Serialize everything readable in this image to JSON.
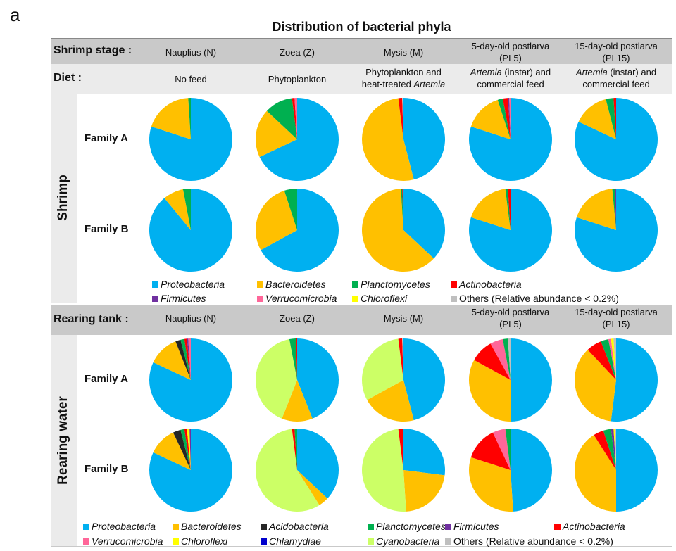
{
  "panel_letter": "a",
  "chart_data": {
    "type": "pie",
    "title": "Distribution of bacterial phyla",
    "slice_order": "clockwise from 12 o'clock",
    "colors": {
      "Proteobacteria": "#00b0f0",
      "Bacteroidetes": "#ffc000",
      "Acidobacteria": "#262626",
      "Planctomycetes": "#00b050",
      "Firmicutes": "#7030a0",
      "Actinobacteria": "#ff0000",
      "Verrucomicrobia": "#ff6699",
      "Chloroflexi": "#ffff00",
      "Chlamydiae": "#0000cc",
      "Cyanobacteria": "#ccff66",
      "Others": "#bfbfbf"
    },
    "sections": [
      {
        "side_label": "Shrimp",
        "header_label": "Shrimp stage :",
        "stages": [
          {
            "line1": "Nauplius (N)",
            "line2": ""
          },
          {
            "line1": "Zoea (Z)",
            "line2": ""
          },
          {
            "line1": "Mysis (M)",
            "line2": ""
          },
          {
            "line1": "5-day-old postlarva",
            "line2": "(PL5)"
          },
          {
            "line1": "15-day-old postlarva",
            "line2": "(PL15)"
          }
        ],
        "diet_label": "Diet :",
        "diets": [
          {
            "line1": "No feed",
            "line2": ""
          },
          {
            "line1": "Phytoplankton",
            "line2": ""
          },
          {
            "line1": "Phytoplankton and",
            "line2": "heat-treated ",
            "line2_italic": "Artemia"
          },
          {
            "line1_italic": "Artemia",
            "line1": " (instar) and",
            "line2": "commercial feed"
          },
          {
            "line1_italic": "Artemia",
            "line1": " (instar) and",
            "line2": "commercial feed"
          }
        ],
        "families": [
          {
            "label": "Family A",
            "pies": [
              [
                [
                  "Proteobacteria",
                  80
                ],
                [
                  "Bacteroidetes",
                  19
                ],
                [
                  "Planctomycetes",
                  1
                ]
              ],
              [
                [
                  "Proteobacteria",
                  68
                ],
                [
                  "Bacteroidetes",
                  19
                ],
                [
                  "Planctomycetes",
                  11
                ],
                [
                  "Actinobacteria",
                  1
                ],
                [
                  "Verrucomicrobia",
                  1
                ]
              ],
              [
                [
                  "Proteobacteria",
                  46
                ],
                [
                  "Bacteroidetes",
                  52
                ],
                [
                  "Actinobacteria",
                  1.5
                ],
                [
                  "Others",
                  0.5
                ]
              ],
              [
                [
                  "Proteobacteria",
                  80
                ],
                [
                  "Bacteroidetes",
                  15
                ],
                [
                  "Planctomycetes",
                  2
                ],
                [
                  "Actinobacteria",
                  2
                ],
                [
                  "Firmicutes",
                  0.5
                ],
                [
                  "Verrucomicrobia",
                  0.5
                ]
              ],
              [
                [
                  "Proteobacteria",
                  82
                ],
                [
                  "Bacteroidetes",
                  14
                ],
                [
                  "Planctomycetes",
                  3
                ],
                [
                  "Actinobacteria",
                  1
                ]
              ]
            ]
          },
          {
            "label": "Family B",
            "pies": [
              [
                [
                  "Proteobacteria",
                  89
                ],
                [
                  "Bacteroidetes",
                  8
                ],
                [
                  "Planctomycetes",
                  3
                ]
              ],
              [
                [
                  "Proteobacteria",
                  67
                ],
                [
                  "Bacteroidetes",
                  28
                ],
                [
                  "Planctomycetes",
                  5
                ]
              ],
              [
                [
                  "Proteobacteria",
                  37
                ],
                [
                  "Bacteroidetes",
                  62
                ],
                [
                  "Planctomycetes",
                  0.5
                ],
                [
                  "Actinobacteria",
                  0.5
                ]
              ],
              [
                [
                  "Proteobacteria",
                  80
                ],
                [
                  "Bacteroidetes",
                  18
                ],
                [
                  "Planctomycetes",
                  1
                ],
                [
                  "Actinobacteria",
                  1
                ]
              ],
              [
                [
                  "Proteobacteria",
                  80
                ],
                [
                  "Bacteroidetes",
                  18.5
                ],
                [
                  "Planctomycetes",
                  1
                ],
                [
                  "Firmicutes",
                  0.5
                ]
              ]
            ]
          }
        ],
        "legend": [
          "Proteobacteria",
          "Bacteroidetes",
          "Planctomycetes",
          "Actinobacteria",
          "Firmicutes",
          "Verrucomicrobia",
          "Chloroflexi",
          "Others"
        ],
        "others_label": "Others (Relative abundance < 0.2%)"
      },
      {
        "side_label": "Rearing water",
        "header_label": "Rearing tank :",
        "stages": [
          {
            "line1": "Nauplius (N)",
            "line2": ""
          },
          {
            "line1": "Zoea (Z)",
            "line2": ""
          },
          {
            "line1": "Mysis (M)",
            "line2": ""
          },
          {
            "line1": "5-day-old postlarva",
            "line2": "(PL5)"
          },
          {
            "line1": "15-day-old postlarva",
            "line2": "(PL15)"
          }
        ],
        "families": [
          {
            "label": "Family A",
            "pies": [
              [
                [
                  "Proteobacteria",
                  82
                ],
                [
                  "Bacteroidetes",
                  12
                ],
                [
                  "Acidobacteria",
                  2
                ],
                [
                  "Planctomycetes",
                  1.5
                ],
                [
                  "Actinobacteria",
                  1
                ],
                [
                  "Firmicutes",
                  0.5
                ],
                [
                  "Verrucomicrobia",
                  1
                ]
              ],
              [
                [
                  "Proteobacteria",
                  44
                ],
                [
                  "Bacteroidetes",
                  12
                ],
                [
                  "Cyanobacteria",
                  41
                ],
                [
                  "Planctomycetes",
                  2.5
                ],
                [
                  "Actinobacteria",
                  0.5
                ]
              ],
              [
                [
                  "Proteobacteria",
                  46
                ],
                [
                  "Bacteroidetes",
                  21
                ],
                [
                  "Cyanobacteria",
                  31
                ],
                [
                  "Actinobacteria",
                  1.5
                ],
                [
                  "Others",
                  0.5
                ]
              ],
              [
                [
                  "Proteobacteria",
                  50
                ],
                [
                  "Bacteroidetes",
                  33
                ],
                [
                  "Actinobacteria",
                  9
                ],
                [
                  "Verrucomicrobia",
                  5
                ],
                [
                  "Planctomycetes",
                  2
                ],
                [
                  "Others",
                  1
                ]
              ],
              [
                [
                  "Proteobacteria",
                  52
                ],
                [
                  "Bacteroidetes",
                  36
                ],
                [
                  "Actinobacteria",
                  6
                ],
                [
                  "Planctomycetes",
                  3
                ],
                [
                  "Verrucomicrobia",
                  1
                ],
                [
                  "Chloroflexi",
                  1
                ],
                [
                  "Others",
                  1
                ]
              ]
            ]
          },
          {
            "label": "Family B",
            "pies": [
              [
                [
                  "Proteobacteria",
                  82
                ],
                [
                  "Bacteroidetes",
                  11
                ],
                [
                  "Acidobacteria",
                  3
                ],
                [
                  "Planctomycetes",
                  1.5
                ],
                [
                  "Actinobacteria",
                  1
                ],
                [
                  "Chloroflexi",
                  1
                ],
                [
                  "Firmicutes",
                  0.5
                ]
              ],
              [
                [
                  "Proteobacteria",
                  37
                ],
                [
                  "Bacteroidetes",
                  4
                ],
                [
                  "Cyanobacteria",
                  57
                ],
                [
                  "Actinobacteria",
                  1
                ],
                [
                  "Planctomycetes",
                  1
                ]
              ],
              [
                [
                  "Proteobacteria",
                  27
                ],
                [
                  "Bacteroidetes",
                  22
                ],
                [
                  "Cyanobacteria",
                  49
                ],
                [
                  "Actinobacteria",
                  2
                ]
              ],
              [
                [
                  "Proteobacteria",
                  49
                ],
                [
                  "Bacteroidetes",
                  31
                ],
                [
                  "Actinobacteria",
                  13
                ],
                [
                  "Verrucomicrobia",
                  5
                ],
                [
                  "Planctomycetes",
                  2
                ]
              ],
              [
                [
                  "Proteobacteria",
                  50
                ],
                [
                  "Bacteroidetes",
                  41
                ],
                [
                  "Actinobacteria",
                  4
                ],
                [
                  "Planctomycetes",
                  3
                ],
                [
                  "Firmicutes",
                  1
                ],
                [
                  "Chloroflexi",
                  0.5
                ],
                [
                  "Others",
                  0.5
                ]
              ]
            ]
          }
        ],
        "legend": [
          "Proteobacteria",
          "Bacteroidetes",
          "Acidobacteria",
          "Planctomycetes",
          "Firmicutes",
          "Actinobacteria",
          "Verrucomicrobia",
          "Chloroflexi",
          "Chlamydiae",
          "Cyanobacteria",
          "Others"
        ],
        "others_label": "Others (Relative abundance < 0.2%)"
      }
    ]
  }
}
